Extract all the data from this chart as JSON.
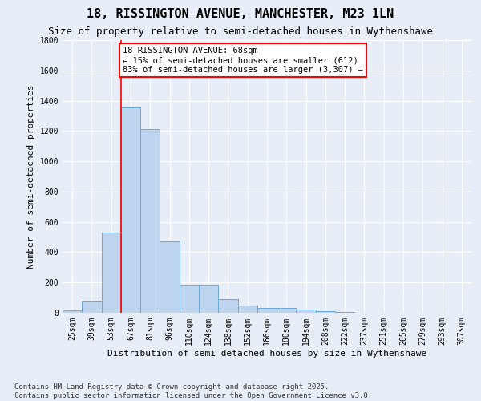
{
  "title": "18, RISSINGTON AVENUE, MANCHESTER, M23 1LN",
  "subtitle": "Size of property relative to semi-detached houses in Wythenshawe",
  "xlabel": "Distribution of semi-detached houses by size in Wythenshawe",
  "ylabel": "Number of semi-detached properties",
  "footer": "Contains HM Land Registry data © Crown copyright and database right 2025.\nContains public sector information licensed under the Open Government Licence v3.0.",
  "categories": [
    "25sqm",
    "39sqm",
    "53sqm",
    "67sqm",
    "81sqm",
    "96sqm",
    "110sqm",
    "124sqm",
    "138sqm",
    "152sqm",
    "166sqm",
    "180sqm",
    "194sqm",
    "208sqm",
    "222sqm",
    "237sqm",
    "251sqm",
    "265sqm",
    "279sqm",
    "293sqm",
    "307sqm"
  ],
  "values": [
    15,
    80,
    530,
    1355,
    1215,
    470,
    185,
    185,
    88,
    48,
    33,
    30,
    20,
    10,
    5,
    2,
    2,
    0,
    0,
    0,
    0
  ],
  "bar_color": "#bdd4ee",
  "bar_edge_color": "#6aaad4",
  "property_size_label": "18 RISSINGTON AVENUE: 68sqm",
  "pct_smaller": 15,
  "count_smaller": 612,
  "pct_larger": 83,
  "count_larger": 3307,
  "vline_color": "red",
  "vline_index": 3,
  "ylim": [
    0,
    1800
  ],
  "yticks": [
    0,
    200,
    400,
    600,
    800,
    1000,
    1200,
    1400,
    1600,
    1800
  ],
  "background_color": "#e8eef7",
  "grid_color": "white",
  "title_fontsize": 11,
  "subtitle_fontsize": 9,
  "axis_label_fontsize": 8,
  "tick_fontsize": 7,
  "annotation_fontsize": 7.5,
  "footer_fontsize": 6.5
}
